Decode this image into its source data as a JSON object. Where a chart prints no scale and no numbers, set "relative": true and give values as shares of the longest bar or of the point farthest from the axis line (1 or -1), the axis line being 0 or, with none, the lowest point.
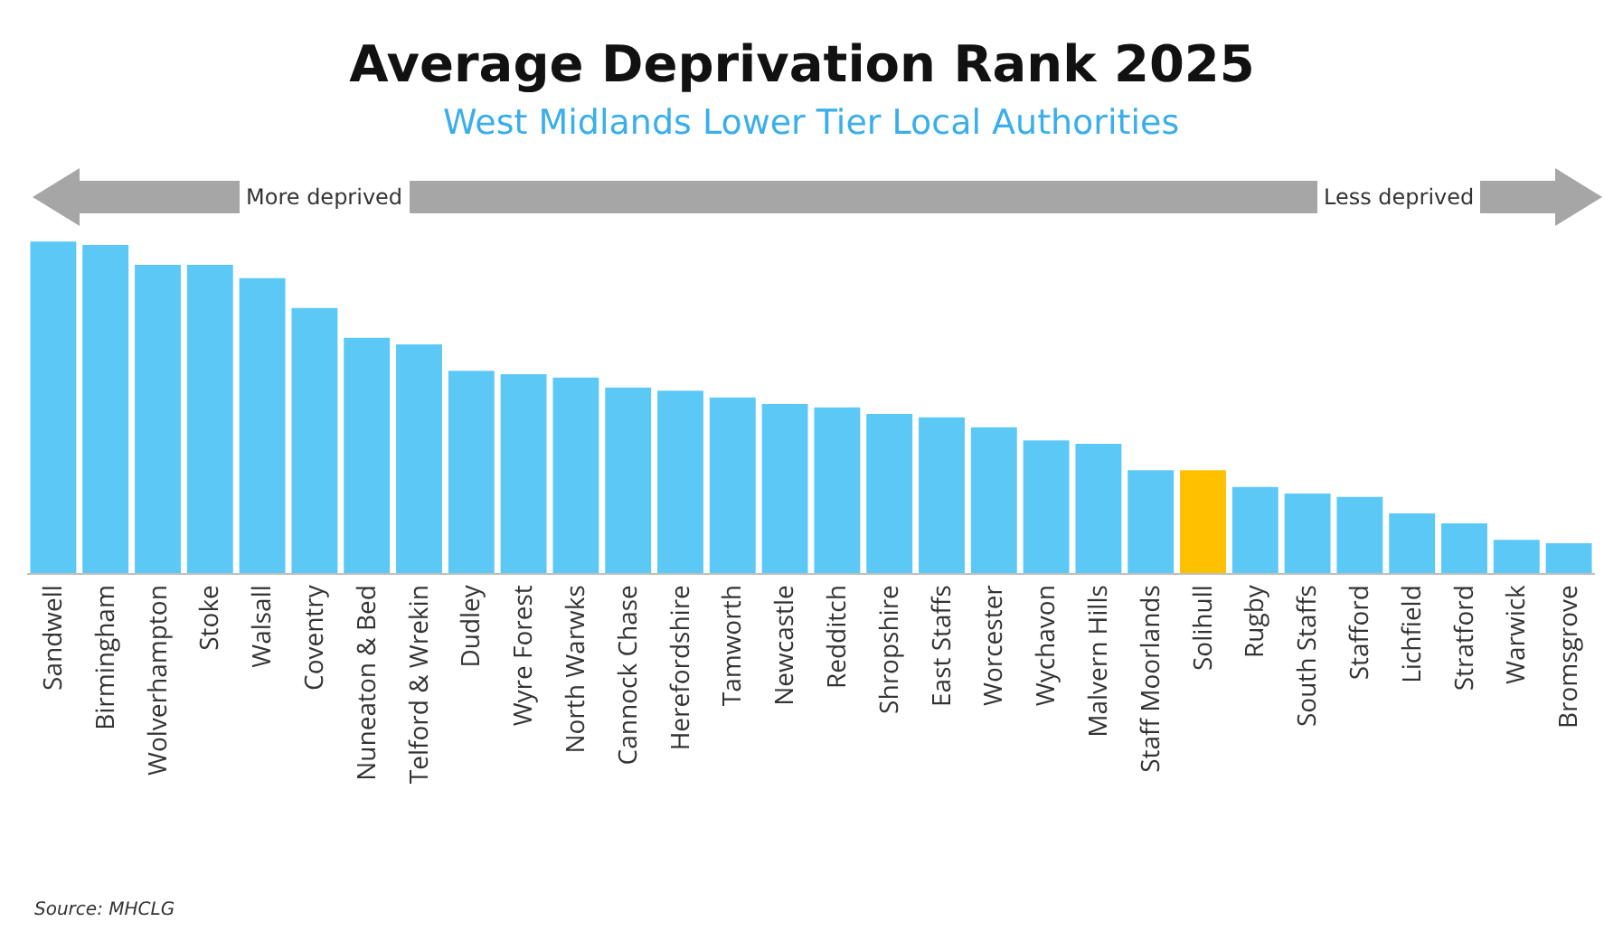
{
  "chart_data": {
    "type": "bar",
    "title": "Average Deprivation Rank 2025",
    "subtitle": "West Midlands Lower Tier Local Authorities",
    "categories": [
      "Sandwell",
      "Birmingham",
      "Wolverhampton",
      "Stoke",
      "Walsall",
      "Coventry",
      "Nuneaton & Bed",
      "Telford & Wrekin",
      "Dudley",
      "Wyre Forest",
      "North Warwks",
      "Cannock Chase",
      "Herefordshire",
      "Tamworth",
      "Newcastle",
      "Redditch",
      "Shropshire",
      "East Staffs",
      "Worcester",
      "Wychavon",
      "Malvern Hills",
      "Staff Moorlands",
      "Solihull",
      "Rugby",
      "South Staffs",
      "Stafford",
      "Lichfield",
      "Stratford",
      "Warwick",
      "Bromsgrove"
    ],
    "values": [
      1,
      0.99,
      0.93,
      0.93,
      0.89,
      0.8,
      0.71,
      0.69,
      0.61,
      0.6,
      0.59,
      0.56,
      0.55,
      0.53,
      0.51,
      0.5,
      0.48,
      0.47,
      0.44,
      0.4,
      0.39,
      0.31,
      0.31,
      0.26,
      0.24,
      0.23,
      0.18,
      0.15,
      0.1,
      0.09
    ],
    "colors": [
      "#5bc8f5",
      "#5bc8f5",
      "#5bc8f5",
      "#5bc8f5",
      "#5bc8f5",
      "#5bc8f5",
      "#5bc8f5",
      "#5bc8f5",
      "#5bc8f5",
      "#5bc8f5",
      "#5bc8f5",
      "#5bc8f5",
      "#5bc8f5",
      "#5bc8f5",
      "#5bc8f5",
      "#5bc8f5",
      "#5bc8f5",
      "#5bc8f5",
      "#5bc8f5",
      "#5bc8f5",
      "#5bc8f5",
      "#5bc8f5",
      "#ffc000",
      "#5bc8f5",
      "#5bc8f5",
      "#5bc8f5",
      "#5bc8f5",
      "#5bc8f5",
      "#5bc8f5",
      "#5bc8f5"
    ],
    "relative": true,
    "annotations": [
      "More deprived",
      "Less deprived",
      "Source: MHCLG"
    ]
  }
}
